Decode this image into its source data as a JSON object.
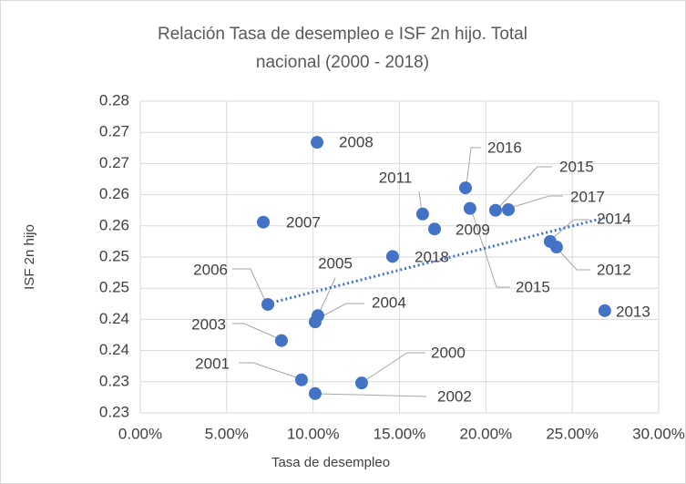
{
  "chart_data": {
    "type": "scatter",
    "title": "Relación Tasa de desempleo e ISF 2n hijo. Total nacional (2000 - 2018)",
    "x_label": "Tasa de desempleo",
    "y_label": "ISF 2n hijo",
    "color": "#4472c4",
    "trendline": true,
    "grid": true,
    "labels": [
      "2000",
      "2001",
      "2002",
      "2003",
      "2004",
      "2005",
      "2006",
      "2007",
      "2008",
      "2009",
      "2011",
      "2012",
      "2013",
      "2014",
      "2015",
      "2015",
      "2016",
      "2017",
      "2018"
    ],
    "x": [
      12.81,
      9.33,
      10.12,
      8.17,
      10.12,
      10.28,
      7.38,
      7.12,
      10.23,
      17.03,
      16.34,
      24.09,
      26.88,
      23.72,
      20.56,
      19.08,
      18.82,
      21.3,
      14.6
    ],
    "y": [
      0.2298,
      0.2303,
      0.2281,
      0.2366,
      0.2396,
      0.2406,
      0.2424,
      0.2556,
      0.2684,
      0.2545,
      0.2569,
      0.2516,
      0.2414,
      0.2525,
      0.2575,
      0.2578,
      0.2611,
      0.2576,
      0.2501
    ],
    "xlim": [
      0,
      30
    ],
    "xticks": [
      {
        "value": 0,
        "label": "0.00%"
      },
      {
        "value": 5,
        "label": "5.00%"
      },
      {
        "value": 10,
        "label": "10.00%"
      },
      {
        "value": 15,
        "label": "15.00%"
      },
      {
        "value": 20,
        "label": "20.00%"
      },
      {
        "value": 25,
        "label": "25.00%"
      },
      {
        "value": 30,
        "label": "30.00%"
      }
    ],
    "ylim": [
      0.225,
      0.275
    ],
    "yticks": [
      {
        "value": 0.225,
        "label": "0.23"
      },
      0.23,
      {
        "value": 0.235,
        "label": "0.24"
      },
      0.24,
      {
        "value": 0.245,
        "label": "0.25"
      },
      0.25,
      {
        "value": 0.255,
        "label": "0.26"
      },
      0.26,
      {
        "value": 0.265,
        "label": "0.27"
      },
      0.27,
      {
        "value": 0.275,
        "label": "0.28"
      }
    ]
  }
}
